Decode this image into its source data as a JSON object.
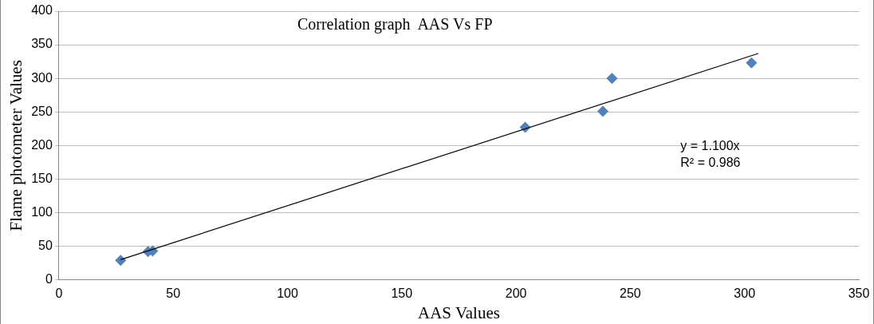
{
  "chart_data": {
    "type": "scatter",
    "title": "Correlation graph  AAS Vs FP",
    "xlabel": "AAS Values",
    "ylabel": "Flame photometer Values",
    "xlim": [
      0,
      350
    ],
    "xticks": [
      0,
      50,
      100,
      150,
      200,
      250,
      300,
      350
    ],
    "ylim": [
      0,
      400
    ],
    "yticks": [
      0,
      50,
      100,
      150,
      200,
      250,
      300,
      350,
      400
    ],
    "grid": "y",
    "legend": false,
    "marker": "diamond",
    "series": [
      {
        "color": "#4f81bd",
        "x": [
          27,
          39,
          41,
          204,
          238,
          242,
          303
        ],
        "values": [
          29,
          42,
          43,
          227,
          251,
          300,
          323
        ]
      },
      {
        "type": "line",
        "color": "#000000",
        "marker": "none",
        "x": [
          27,
          306
        ],
        "values": [
          30,
          337
        ]
      }
    ],
    "annotations": [
      "y = 1.100x",
      "R² = 0.986"
    ]
  }
}
